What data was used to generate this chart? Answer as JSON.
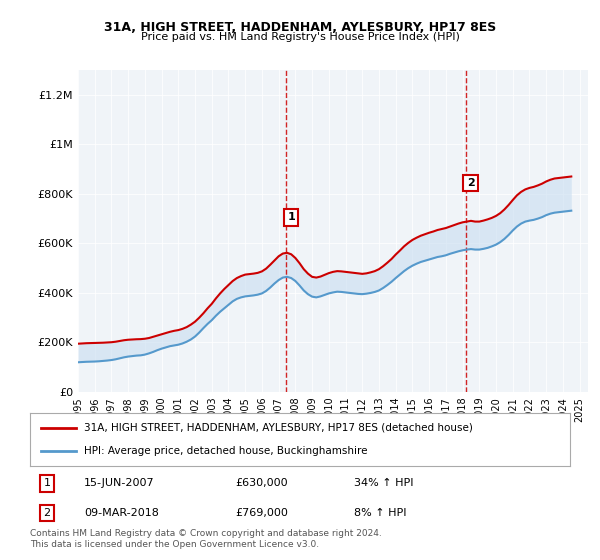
{
  "title": "31A, HIGH STREET, HADDENHAM, AYLESBURY, HP17 8ES",
  "subtitle": "Price paid vs. HM Land Registry's House Price Index (HPI)",
  "ylabel_ticks": [
    "£0",
    "£200K",
    "£400K",
    "£600K",
    "£800K",
    "£1M",
    "£1.2M"
  ],
  "ytick_values": [
    0,
    200000,
    400000,
    600000,
    800000,
    1000000,
    1200000
  ],
  "ylim": [
    0,
    1300000
  ],
  "xlim_start": 1995.0,
  "xlim_end": 2025.5,
  "sale1_x": 2007.45,
  "sale1_y": 630000,
  "sale1_label": "1",
  "sale1_date": "15-JUN-2007",
  "sale1_price": "£630,000",
  "sale1_hpi": "34% ↑ HPI",
  "sale2_x": 2018.18,
  "sale2_y": 769000,
  "sale2_label": "2",
  "sale2_date": "09-MAR-2018",
  "sale2_price": "£769,000",
  "sale2_hpi": "8% ↑ HPI",
  "red_color": "#cc0000",
  "blue_color": "#5599cc",
  "fill_color": "#c8ddf0",
  "background_color": "#f0f4f8",
  "legend_line1": "31A, HIGH STREET, HADDENHAM, AYLESBURY, HP17 8ES (detached house)",
  "legend_line2": "HPI: Average price, detached house, Buckinghamshire",
  "footnote": "Contains HM Land Registry data © Crown copyright and database right 2024.\nThis data is licensed under the Open Government Licence v3.0.",
  "years": [
    1995.0,
    1995.25,
    1995.5,
    1995.75,
    1996.0,
    1996.25,
    1996.5,
    1996.75,
    1997.0,
    1997.25,
    1997.5,
    1997.75,
    1998.0,
    1998.25,
    1998.5,
    1998.75,
    1999.0,
    1999.25,
    1999.5,
    1999.75,
    2000.0,
    2000.25,
    2000.5,
    2000.75,
    2001.0,
    2001.25,
    2001.5,
    2001.75,
    2002.0,
    2002.25,
    2002.5,
    2002.75,
    2003.0,
    2003.25,
    2003.5,
    2003.75,
    2004.0,
    2004.25,
    2004.5,
    2004.75,
    2005.0,
    2005.25,
    2005.5,
    2005.75,
    2006.0,
    2006.25,
    2006.5,
    2006.75,
    2007.0,
    2007.25,
    2007.5,
    2007.75,
    2008.0,
    2008.25,
    2008.5,
    2008.75,
    2009.0,
    2009.25,
    2009.5,
    2009.75,
    2010.0,
    2010.25,
    2010.5,
    2010.75,
    2011.0,
    2011.25,
    2011.5,
    2011.75,
    2012.0,
    2012.25,
    2012.5,
    2012.75,
    2013.0,
    2013.25,
    2013.5,
    2013.75,
    2014.0,
    2014.25,
    2014.5,
    2014.75,
    2015.0,
    2015.25,
    2015.5,
    2015.75,
    2016.0,
    2016.25,
    2016.5,
    2016.75,
    2017.0,
    2017.25,
    2017.5,
    2017.75,
    2018.0,
    2018.25,
    2018.5,
    2018.75,
    2019.0,
    2019.25,
    2019.5,
    2019.75,
    2020.0,
    2020.25,
    2020.5,
    2020.75,
    2021.0,
    2021.25,
    2021.5,
    2021.75,
    2022.0,
    2022.25,
    2022.5,
    2022.75,
    2023.0,
    2023.25,
    2023.5,
    2023.75,
    2024.0,
    2024.25,
    2024.5
  ],
  "hpi_values": [
    120000,
    121000,
    122000,
    122500,
    123000,
    124000,
    125500,
    127000,
    129000,
    132000,
    136000,
    140000,
    143000,
    145000,
    147000,
    148000,
    151000,
    156000,
    162000,
    169000,
    175000,
    180000,
    185000,
    188000,
    191000,
    196000,
    203000,
    212000,
    224000,
    240000,
    258000,
    275000,
    290000,
    308000,
    324000,
    338000,
    352000,
    366000,
    376000,
    382000,
    386000,
    388000,
    390000,
    393000,
    398000,
    408000,
    422000,
    438000,
    452000,
    462000,
    465000,
    460000,
    448000,
    430000,
    410000,
    395000,
    385000,
    382000,
    386000,
    392000,
    398000,
    402000,
    405000,
    404000,
    402000,
    400000,
    398000,
    396000,
    395000,
    397000,
    400000,
    404000,
    410000,
    420000,
    432000,
    445000,
    460000,
    474000,
    488000,
    500000,
    510000,
    518000,
    525000,
    530000,
    535000,
    540000,
    545000,
    548000,
    552000,
    558000,
    563000,
    568000,
    572000,
    575000,
    577000,
    575000,
    575000,
    578000,
    582000,
    588000,
    595000,
    605000,
    618000,
    634000,
    652000,
    668000,
    680000,
    688000,
    692000,
    695000,
    700000,
    706000,
    714000,
    720000,
    724000,
    726000,
    728000,
    730000,
    732000
  ],
  "red_values": [
    195000,
    196000,
    197000,
    197500,
    198000,
    198500,
    199000,
    200000,
    201000,
    203000,
    206000,
    209000,
    211000,
    212000,
    213000,
    213500,
    215000,
    218000,
    223000,
    228000,
    233000,
    238000,
    243000,
    247000,
    250000,
    255000,
    262000,
    272000,
    284000,
    300000,
    318000,
    338000,
    356000,
    378000,
    398000,
    416000,
    432000,
    448000,
    460000,
    468000,
    474000,
    476000,
    478000,
    481000,
    487000,
    498000,
    514000,
    531000,
    548000,
    559000,
    562000,
    556000,
    541000,
    520000,
    496000,
    478000,
    465000,
    462000,
    466000,
    473000,
    480000,
    485000,
    488000,
    487000,
    485000,
    483000,
    481000,
    479000,
    477000,
    479000,
    483000,
    488000,
    496000,
    508000,
    522000,
    537000,
    555000,
    571000,
    588000,
    602000,
    614000,
    623000,
    631000,
    637000,
    643000,
    648000,
    654000,
    658000,
    662000,
    668000,
    674000,
    680000,
    685000,
    688000,
    691000,
    688000,
    688000,
    692000,
    697000,
    703000,
    711000,
    722000,
    737000,
    755000,
    775000,
    794000,
    808000,
    818000,
    824000,
    828000,
    834000,
    841000,
    850000,
    857000,
    862000,
    864000,
    866000,
    868000,
    870000
  ]
}
